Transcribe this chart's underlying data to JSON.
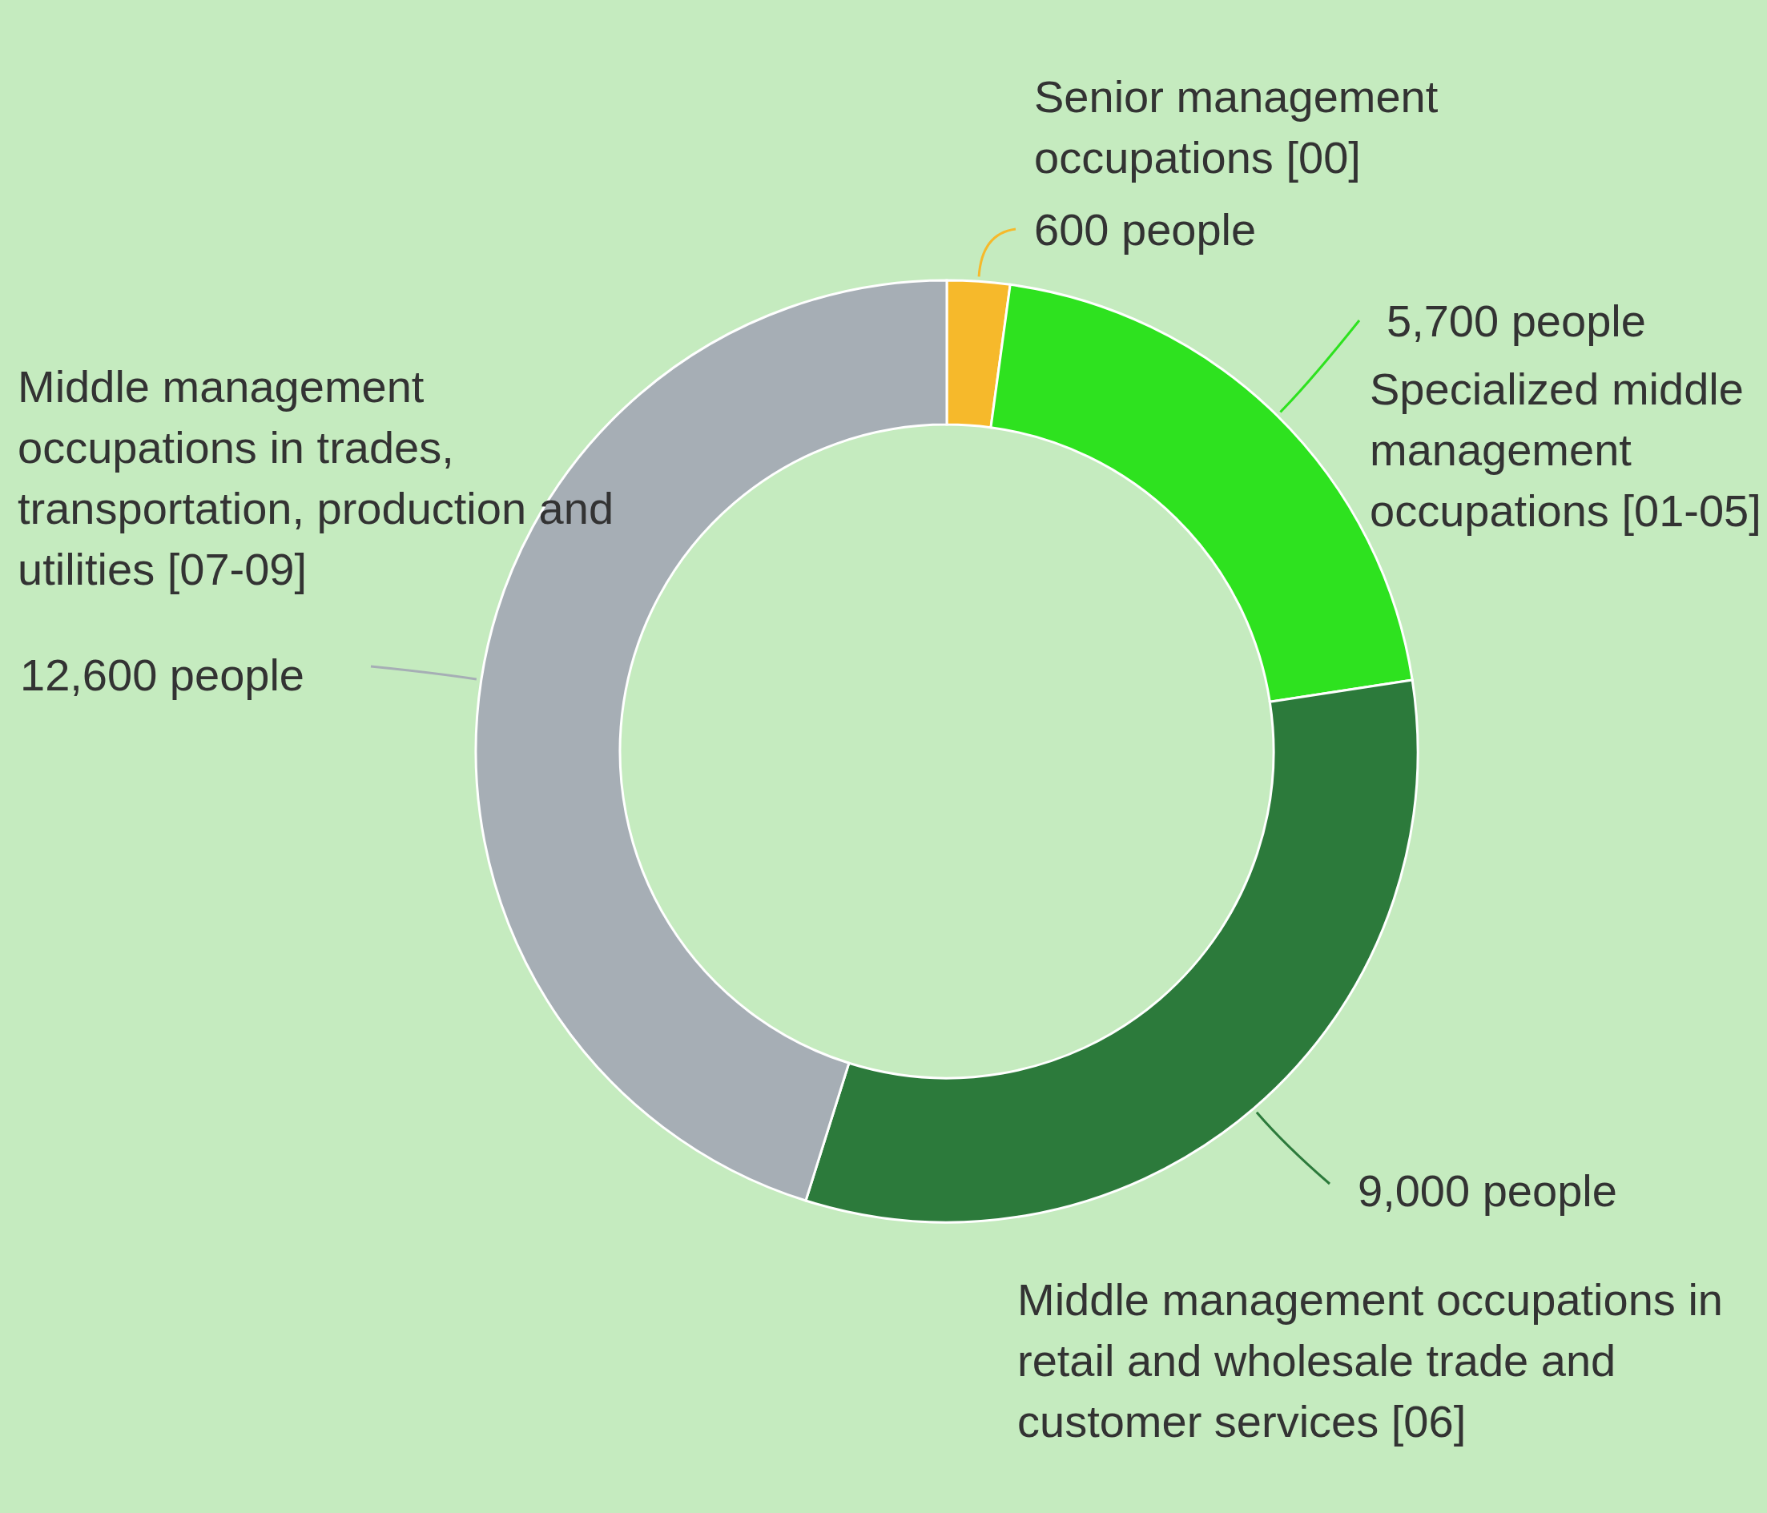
{
  "chart_data": {
    "type": "donut",
    "categories": [
      "Senior management occupations [00]",
      "Specialized middle management occupations [01-05]",
      "Middle management occupations in retail and wholesale trade and customer services [06]",
      "Middle management occupations in trades, transportation, production and utilities [07-09]"
    ],
    "values": [
      600,
      5700,
      9000,
      12600
    ],
    "colors": [
      "#f6b92b",
      "#2ee21f",
      "#2c7a3b",
      "#a6aeb5"
    ],
    "value_labels": [
      "600 people",
      "5,700 people",
      "9,000 people",
      "12,600 people"
    ]
  }
}
